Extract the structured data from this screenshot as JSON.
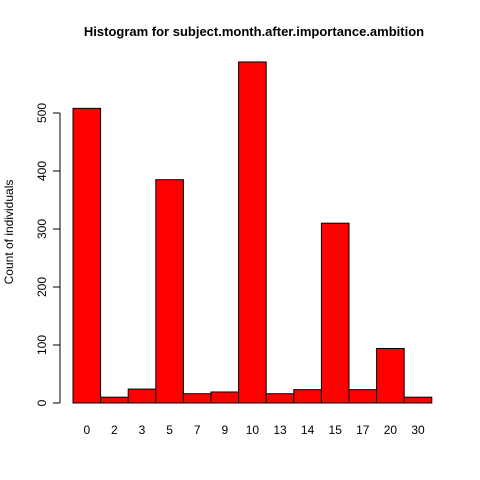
{
  "chart_data": {
    "type": "bar",
    "title": "Histogram for subject.month.after.importance.ambition",
    "xlabel": "",
    "ylabel": "Count of individuals",
    "categories": [
      "0",
      "2",
      "3",
      "5",
      "7",
      "9",
      "10",
      "13",
      "14",
      "15",
      "17",
      "20",
      "30"
    ],
    "values": [
      508,
      10,
      24,
      385,
      16,
      19,
      588,
      16,
      23,
      310,
      23,
      94,
      10
    ],
    "ylim": [
      0,
      600
    ],
    "yticks": [
      0,
      100,
      200,
      300,
      400,
      500
    ],
    "grid": false,
    "legend": "none",
    "bar_color": "#ff0000",
    "bar_border_color": "#000000"
  }
}
